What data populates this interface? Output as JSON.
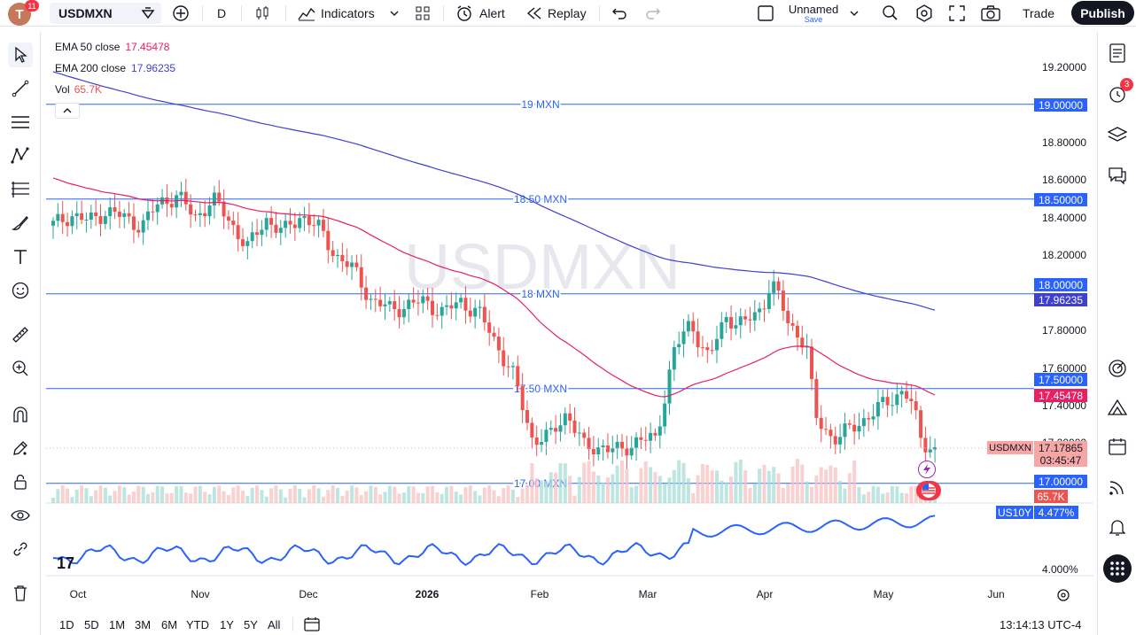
{
  "toolbar": {
    "avatar_letter": "T",
    "avatar_badge": "11",
    "symbol": "USDMXN",
    "interval": "D",
    "indicators_label": "Indicators",
    "alert_label": "Alert",
    "replay_label": "Replay",
    "layout_name": "Unnamed",
    "layout_save": "Save",
    "trade_label": "Trade",
    "publish_label": "Publish"
  },
  "legend": {
    "ema50_label": "EMA 50 close",
    "ema50_value": "17.45478",
    "ema200_label": "EMA 200 close",
    "ema200_value": "17.96235",
    "vol_label": "Vol",
    "vol_value": "65.7K"
  },
  "watermark": "USDMXN",
  "hlines": [
    {
      "label": "19 MXN",
      "price": 19.0
    },
    {
      "label": "18.50 MXN",
      "price": 18.5
    },
    {
      "label": "18 MXN",
      "price": 18.0
    },
    {
      "label": "17.50 MXN",
      "price": 17.5
    },
    {
      "label": "17.00 MXN",
      "price": 17.0
    }
  ],
  "price_axis": [
    "19.20000",
    "18.80000",
    "18.60000",
    "18.40000",
    "18.20000",
    "17.80000",
    "17.60000",
    "17.40000",
    "17.20000"
  ],
  "price_tags": {
    "line19": "19.00000",
    "line185": "18.50000",
    "line18": "18.00000",
    "ema200": "17.96235",
    "line175": "17.50000",
    "ema50": "17.45478",
    "symbol_label": "USDMXN",
    "last_price": "17.17865",
    "countdown": "03:45:47",
    "line17": "17.00000",
    "volume": "65.7K"
  },
  "compare": {
    "symbol": "US10Y",
    "value": "4.477%",
    "axis_label": "4.000%"
  },
  "time_axis": [
    "Oct",
    "Nov",
    "Dec",
    "2026",
    "Feb",
    "Mar",
    "Apr",
    "May",
    "Jun"
  ],
  "ranges": [
    "1D",
    "5D",
    "1M",
    "3M",
    "6M",
    "YTD",
    "1Y",
    "5Y",
    "All"
  ],
  "clock": "13:14:13 UTC-4",
  "notifications_badge": "3",
  "colors": {
    "up": "#26a69a",
    "down": "#ef5350",
    "ema50": "#e91e63",
    "ema200": "#3f3fd1",
    "hline": "#2962ff",
    "compare": "#2962ff"
  }
}
